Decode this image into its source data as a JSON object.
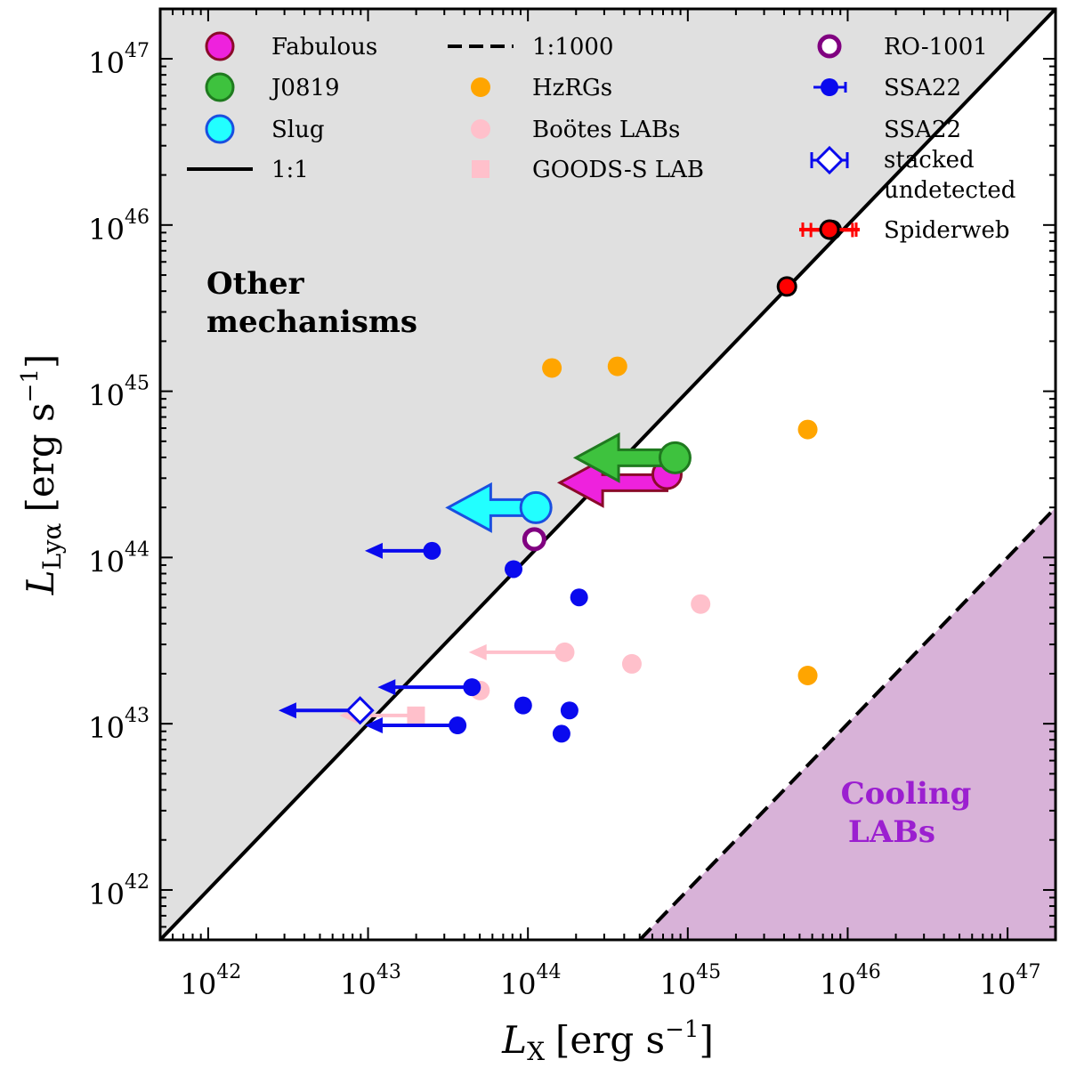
{
  "chart_data": {
    "type": "scatter",
    "xscale": "log",
    "yscale": "log",
    "xlim_log10": [
      41.7,
      47.3
    ],
    "ylim_log10": [
      41.7,
      47.3
    ],
    "x_ticks": [
      {
        "base": "10",
        "exp": "42",
        "value_log10": 42
      },
      {
        "base": "10",
        "exp": "43",
        "value_log10": 43
      },
      {
        "base": "10",
        "exp": "44",
        "value_log10": 44
      },
      {
        "base": "10",
        "exp": "45",
        "value_log10": 45
      },
      {
        "base": "10",
        "exp": "46",
        "value_log10": 46
      },
      {
        "base": "10",
        "exp": "47",
        "value_log10": 47
      }
    ],
    "y_ticks": [
      {
        "base": "10",
        "exp": "42",
        "value_log10": 42
      },
      {
        "base": "10",
        "exp": "43",
        "value_log10": 43
      },
      {
        "base": "10",
        "exp": "44",
        "value_log10": 44
      },
      {
        "base": "10",
        "exp": "45",
        "value_log10": 45
      },
      {
        "base": "10",
        "exp": "46",
        "value_log10": 46
      },
      {
        "base": "10",
        "exp": "47",
        "value_log10": 47
      }
    ],
    "xlabel": {
      "main": "L",
      "sub": "X",
      "units": "[erg s",
      "exp": "−1",
      "close": "]"
    },
    "ylabel": {
      "main": "L",
      "sub": "Lyα",
      "units": "[erg s",
      "exp": "−1",
      "close": "]"
    },
    "lines": [
      {
        "name": "1:1",
        "ratio_log10": 0,
        "style": "solid"
      },
      {
        "name": "1:1000",
        "ratio_log10": -3,
        "style": "dashed"
      }
    ],
    "region_labels": {
      "other_line1": "Other",
      "other_line2": "mechanisms",
      "cooling_line1": "Cooling",
      "cooling_line2": "LABs"
    },
    "colors": {
      "other_region": "#e0e0e0",
      "cooling_region": "#d8b2d8",
      "cooling_text": "#9b1fd0",
      "fabulous": "#ee22dd",
      "fabulous_edge": "#8b0a2a",
      "j0819": "#3ec23e",
      "j0819_edge": "#1f7a1f",
      "slug": "#22ffff",
      "slug_edge": "#1a4fe0",
      "hzrgs": "#ffa500",
      "bootes": "#ffc0cb",
      "goods": "#ffc0cb",
      "ro1001": "#800080",
      "ssa22": "#0a0aee",
      "spiderweb": "#ff0000"
    },
    "series": [
      {
        "name": "Fabulous",
        "x_log10": [
          44.87
        ],
        "y_log10": [
          44.5
        ],
        "upper_limit_x": true,
        "arrow_to_log10": 44.2,
        "marker": "big-circle"
      },
      {
        "name": "J0819",
        "x_log10": [
          44.92
        ],
        "y_log10": [
          44.6
        ],
        "upper_limit_x": true,
        "arrow_to_log10": 44.3,
        "marker": "big-circle"
      },
      {
        "name": "Slug",
        "x_log10": [
          44.05
        ],
        "y_log10": [
          44.3
        ],
        "upper_limit_x": true,
        "arrow_to_log10": 43.5,
        "marker": "big-circle"
      },
      {
        "name": "HzRGs",
        "x_log10": [
          44.15,
          44.56,
          45.75,
          45.75
        ],
        "y_log10": [
          45.14,
          45.15,
          44.77,
          43.29
        ],
        "marker": "circle"
      },
      {
        "name": "Boötes LABs",
        "x_log10": [
          43.7,
          44.23,
          44.65,
          45.08
        ],
        "y_log10": [
          43.2,
          43.43,
          43.36,
          43.72
        ],
        "arrows_from_log10": [
          44.23
        ],
        "arrow_y_log10": 43.43,
        "arrow_to_log10": 43.63,
        "marker": "circle"
      },
      {
        "name": "GOODS-S LAB",
        "x_log10": [
          43.3
        ],
        "y_log10": [
          43.05
        ],
        "upper_limit_x": true,
        "arrow_to_log10": 42.82,
        "marker": "square"
      },
      {
        "name": "RO-1001",
        "x_log10": [
          44.04
        ],
        "y_log10": [
          44.11
        ],
        "marker": "open-circle"
      },
      {
        "name": "SSA22",
        "x_log10": [
          43.4,
          43.91,
          44.32,
          43.97,
          44.26,
          44.21,
          43.65,
          43.56
        ],
        "y_log10": [
          44.04,
          43.93,
          43.76,
          43.11,
          43.08,
          42.94,
          43.22,
          42.99
        ],
        "upper_limits": [
          {
            "x_log10": 43.4,
            "y_log10": 44.04,
            "to_log10": 42.98
          },
          {
            "x_log10": 43.65,
            "y_log10": 43.22,
            "to_log10": 43.06
          },
          {
            "x_log10": 43.56,
            "y_log10": 42.99,
            "to_log10": 42.98
          }
        ],
        "marker": "circle"
      },
      {
        "name": "SSA22 stacked undetected",
        "x_log10": [
          42.95
        ],
        "y_log10": [
          43.08
        ],
        "upper_limit_x": true,
        "arrow_to_log10": 42.44,
        "marker": "open-diamond"
      },
      {
        "name": "Spiderweb",
        "x_log10": [
          45.62,
          45.9
        ],
        "y_log10": [
          45.63,
          45.97
        ],
        "xerr_log10": [
          0,
          0.13
        ],
        "marker": "edged-circle"
      }
    ],
    "legend": {
      "col1": [
        "Fabulous",
        "J0819",
        "Slug",
        "1:1"
      ],
      "col2": [
        "1:1000",
        "HzRGs",
        "Boötes LABs",
        "GOODS-S LAB"
      ],
      "col3_ro": "RO-1001",
      "col3_ssa": "SSA22",
      "col3_stacked": [
        "SSA22",
        "stacked",
        "undetected"
      ],
      "col3_spider": "Spiderweb"
    }
  }
}
